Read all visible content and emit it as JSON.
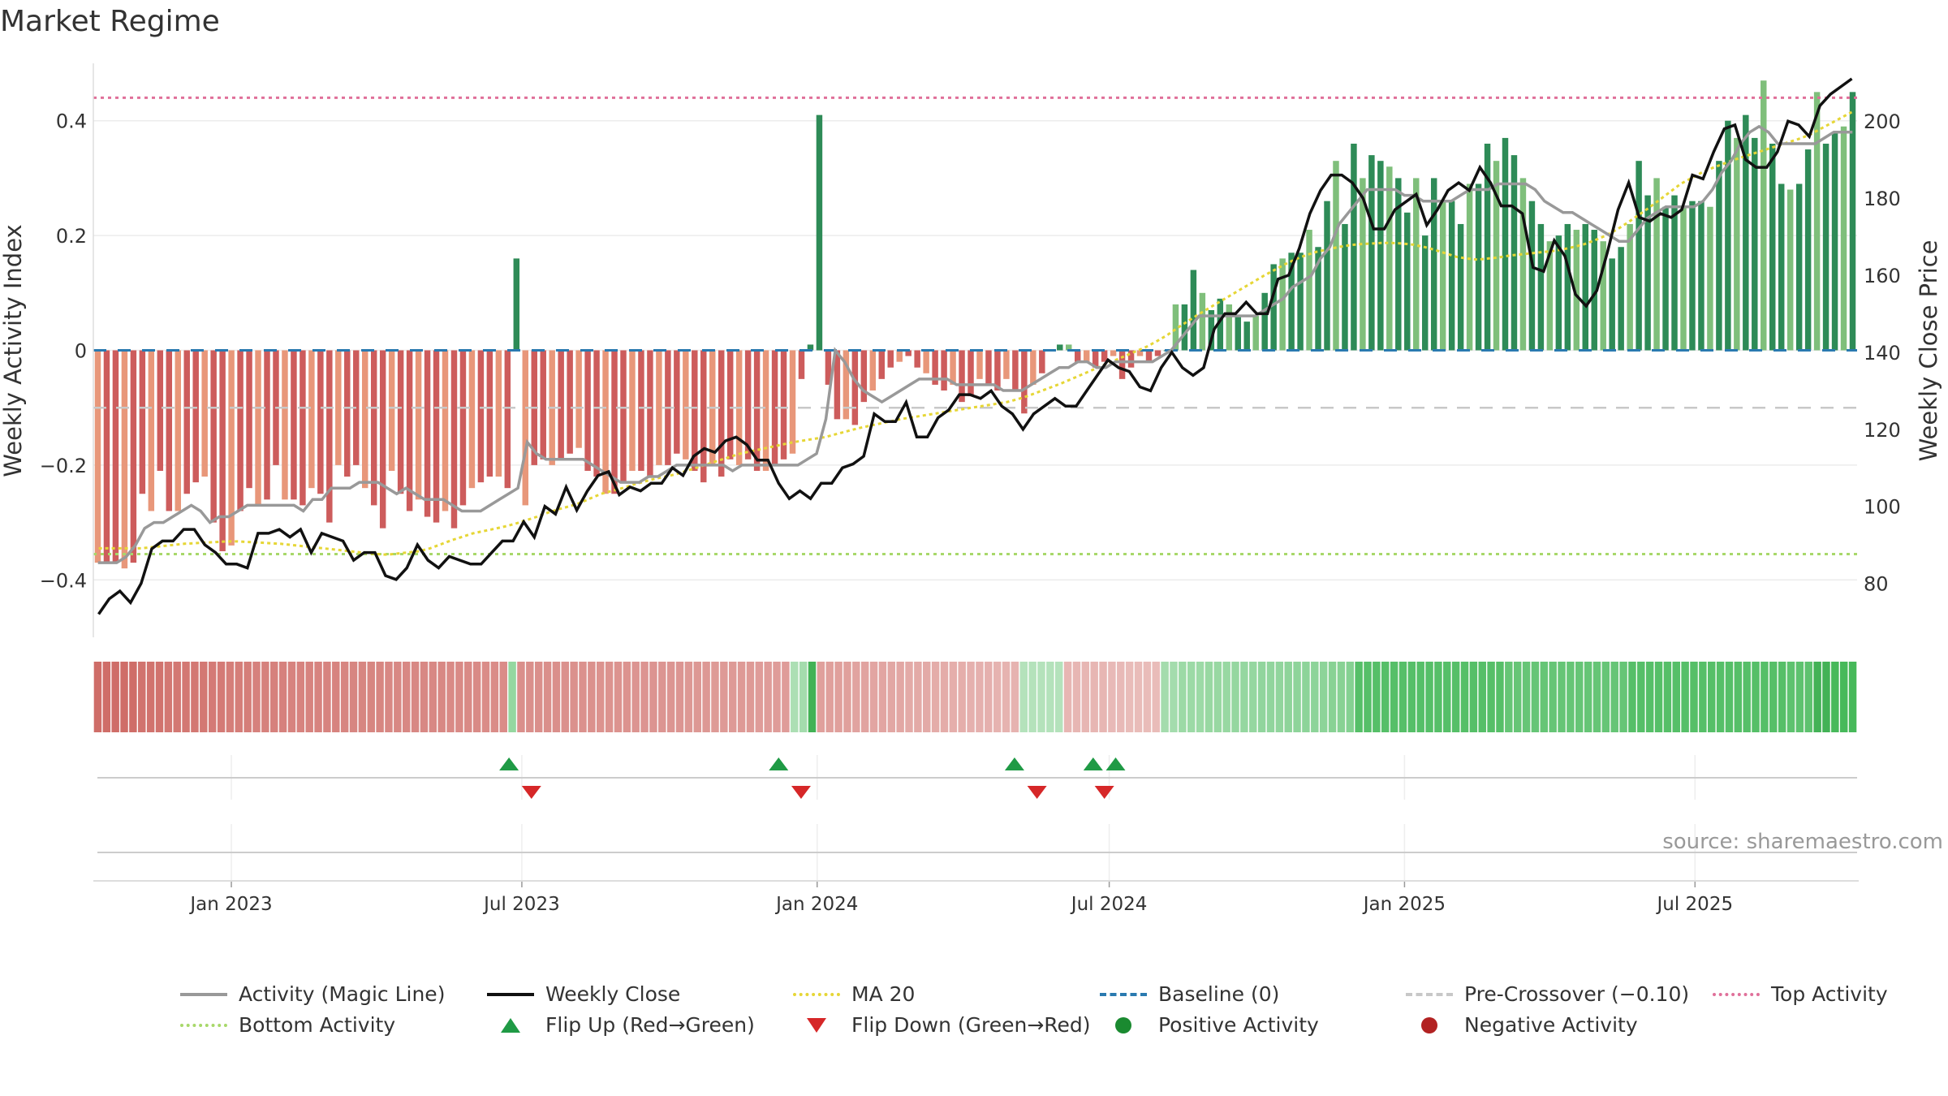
{
  "title": "Market Regime",
  "source": "source: sharemaestro.com",
  "colors": {
    "magic_line": "#999999",
    "weekly_close": "#111111",
    "ma20": "#e6d636",
    "baseline": "#2a7ab0",
    "pre_crossover": "#c8c8c8",
    "top_activity": "#e0709a",
    "bottom_activity": "#a8d86a",
    "flip_up": "#1f9a45",
    "flip_down": "#d62728",
    "positive": "#1a8a30",
    "negative": "#b22222"
  },
  "legend": [
    {
      "key": "magic",
      "label": "Activity (Magic Line)",
      "symbol": "line-solid",
      "color": "#999999"
    },
    {
      "key": "close",
      "label": "Weekly Close",
      "symbol": "line-solid",
      "color": "#111111"
    },
    {
      "key": "ma20",
      "label": "MA 20",
      "symbol": "line-dot",
      "color": "#e6d636"
    },
    {
      "key": "baseline",
      "label": "Baseline (0)",
      "symbol": "line-dash",
      "color": "#2a7ab0"
    },
    {
      "key": "precross",
      "label": "Pre-Crossover (−0.10)",
      "symbol": "line-dash",
      "color": "#c8c8c8"
    },
    {
      "key": "top",
      "label": "Top Activity",
      "symbol": "line-dot",
      "color": "#e0709a"
    },
    {
      "key": "bottom",
      "label": "Bottom Activity",
      "symbol": "line-dot",
      "color": "#a8d86a"
    },
    {
      "key": "flipup",
      "label": "Flip Up (Red→Green)",
      "symbol": "tri-up",
      "color": "#1f9a45"
    },
    {
      "key": "flipdown",
      "label": "Flip Down (Green→Red)",
      "symbol": "tri-down",
      "color": "#d62728"
    },
    {
      "key": "pos",
      "label": "Positive Activity",
      "symbol": "dot",
      "color": "#1a8a30"
    },
    {
      "key": "neg",
      "label": "Negative Activity",
      "symbol": "dot",
      "color": "#b22222"
    }
  ],
  "chart_data": {
    "type": "bar",
    "title": "Market Regime",
    "ylabel": "Weekly Activity Index",
    "y2label": "Weekly Close Price",
    "ylim": [
      -0.5,
      0.5
    ],
    "y2lim": [
      66,
      215
    ],
    "yticks": [
      -0.4,
      -0.2,
      0,
      0.2,
      0.4
    ],
    "ytick_labels": [
      "−0.4",
      "−0.2",
      "0",
      "0.2",
      "0.4"
    ],
    "y2ticks": [
      80,
      100,
      120,
      140,
      160,
      180,
      200
    ],
    "x_start": "2022-10-07",
    "x_end": "2025-10-10",
    "xticks": [
      "2023-01-01",
      "2023-07-01",
      "2024-01-01",
      "2024-07-01",
      "2025-01-01",
      "2025-07-01"
    ],
    "xtick_labels": [
      "Jan 2023",
      "Jul 2023",
      "Jan 2024",
      "Jul 2024",
      "Jan 2025",
      "Jul 2025"
    ],
    "reference_lines": {
      "baseline": 0,
      "pre_crossover": -0.1,
      "top_activity": 0.44,
      "bottom_activity": -0.355
    },
    "activity": [
      -0.37,
      -0.37,
      -0.37,
      -0.38,
      -0.37,
      -0.25,
      -0.28,
      -0.21,
      -0.28,
      -0.28,
      -0.25,
      -0.23,
      -0.22,
      -0.3,
      -0.35,
      -0.34,
      -0.28,
      -0.24,
      -0.27,
      -0.26,
      -0.2,
      -0.26,
      -0.26,
      -0.27,
      -0.24,
      -0.25,
      -0.3,
      -0.2,
      -0.22,
      -0.2,
      -0.24,
      -0.27,
      -0.31,
      -0.21,
      -0.25,
      -0.28,
      -0.26,
      -0.29,
      -0.3,
      -0.28,
      -0.31,
      -0.27,
      -0.24,
      -0.23,
      -0.22,
      -0.22,
      -0.24,
      0.16,
      -0.27,
      -0.2,
      -0.19,
      -0.2,
      -0.19,
      -0.18,
      -0.17,
      -0.21,
      -0.22,
      -0.25,
      -0.25,
      -0.23,
      -0.21,
      -0.21,
      -0.22,
      -0.2,
      -0.2,
      -0.18,
      -0.19,
      -0.21,
      -0.23,
      -0.2,
      -0.22,
      -0.19,
      -0.2,
      -0.19,
      -0.21,
      -0.21,
      -0.2,
      -0.19,
      -0.18,
      -0.05,
      0.01,
      0.41,
      -0.06,
      -0.12,
      -0.12,
      -0.13,
      -0.09,
      -0.07,
      -0.05,
      -0.03,
      -0.02,
      -0.01,
      -0.03,
      -0.04,
      -0.06,
      -0.07,
      -0.06,
      -0.09,
      -0.08,
      -0.05,
      -0.06,
      -0.07,
      -0.05,
      -0.07,
      -0.11,
      -0.06,
      -0.04,
      0.0,
      0.01,
      0.01,
      -0.02,
      -0.02,
      -0.03,
      -0.02,
      -0.01,
      -0.05,
      -0.03,
      -0.01,
      -0.02,
      -0.01,
      0.0,
      0.08,
      0.08,
      0.14,
      0.1,
      0.07,
      0.09,
      0.08,
      0.06,
      0.05,
      0.06,
      0.1,
      0.15,
      0.16,
      0.17,
      0.17,
      0.21,
      0.18,
      0.26,
      0.33,
      0.22,
      0.36,
      0.3,
      0.34,
      0.33,
      0.32,
      0.3,
      0.24,
      0.3,
      0.2,
      0.3,
      0.26,
      0.26,
      0.22,
      0.29,
      0.29,
      0.36,
      0.33,
      0.37,
      0.34,
      0.3,
      0.26,
      0.22,
      0.19,
      0.2,
      0.22,
      0.21,
      0.22,
      0.21,
      0.19,
      0.16,
      0.18,
      0.22,
      0.33,
      0.27,
      0.3,
      0.25,
      0.27,
      0.25,
      0.26,
      0.26,
      0.25,
      0.33,
      0.4,
      0.37,
      0.41,
      0.37,
      0.47,
      0.36,
      0.29,
      0.28,
      0.29,
      0.35,
      0.45,
      0.36,
      0.38,
      0.39,
      0.45
    ],
    "close": [
      72,
      76,
      78,
      75,
      80,
      89,
      91,
      91,
      94,
      94,
      90,
      88,
      85,
      85,
      84,
      93,
      93,
      94,
      92,
      94,
      88,
      93,
      92,
      91,
      86,
      88,
      88,
      82,
      81,
      84,
      90,
      86,
      84,
      87,
      86,
      85,
      85,
      88,
      91,
      91,
      96,
      92,
      100,
      98,
      105,
      99,
      104,
      108,
      109,
      103,
      105,
      104,
      106,
      106,
      110,
      108,
      113,
      115,
      114,
      117,
      118,
      116,
      112,
      112,
      106,
      102,
      104,
      102,
      106,
      106,
      110,
      111,
      113,
      124,
      122,
      122,
      127,
      118,
      118,
      123,
      125,
      129,
      129,
      128,
      130,
      126,
      124,
      120,
      124,
      126,
      128,
      126,
      126,
      130,
      134,
      138,
      136,
      135,
      131,
      130,
      136,
      140,
      136,
      134,
      136,
      146,
      150,
      150,
      153,
      150,
      150,
      159,
      160,
      167,
      176,
      182,
      186,
      186,
      184,
      180,
      172,
      172,
      177,
      179,
      181,
      173,
      177,
      182,
      184,
      182,
      188,
      184,
      178,
      178,
      176,
      162,
      161,
      169,
      165,
      155,
      152,
      156,
      166,
      177,
      184,
      175,
      174,
      176,
      175,
      177,
      186,
      185,
      192,
      198,
      199,
      190,
      188,
      188,
      192,
      200,
      199,
      196,
      204,
      207,
      209,
      211
    ],
    "magic": [
      -0.37,
      -0.37,
      -0.37,
      -0.36,
      -0.34,
      -0.31,
      -0.3,
      -0.3,
      -0.29,
      -0.28,
      -0.27,
      -0.28,
      -0.3,
      -0.29,
      -0.29,
      -0.28,
      -0.27,
      -0.27,
      -0.27,
      -0.27,
      -0.27,
      -0.27,
      -0.28,
      -0.26,
      -0.26,
      -0.24,
      -0.24,
      -0.24,
      -0.23,
      -0.23,
      -0.23,
      -0.24,
      -0.25,
      -0.24,
      -0.25,
      -0.26,
      -0.26,
      -0.26,
      -0.27,
      -0.28,
      -0.28,
      -0.28,
      -0.27,
      -0.26,
      -0.25,
      -0.24,
      -0.16,
      -0.18,
      -0.19,
      -0.19,
      -0.19,
      -0.19,
      -0.19,
      -0.2,
      -0.21,
      -0.22,
      -0.23,
      -0.23,
      -0.23,
      -0.22,
      -0.22,
      -0.21,
      -0.2,
      -0.2,
      -0.2,
      -0.2,
      -0.2,
      -0.2,
      -0.21,
      -0.2,
      -0.2,
      -0.2,
      -0.2,
      -0.2,
      -0.2,
      -0.2,
      -0.19,
      -0.18,
      -0.12,
      0.0,
      -0.02,
      -0.05,
      -0.07,
      -0.08,
      -0.09,
      -0.08,
      -0.07,
      -0.06,
      -0.05,
      -0.05,
      -0.05,
      -0.05,
      -0.06,
      -0.06,
      -0.06,
      -0.06,
      -0.06,
      -0.07,
      -0.07,
      -0.07,
      -0.06,
      -0.05,
      -0.04,
      -0.03,
      -0.03,
      -0.02,
      -0.02,
      -0.03,
      -0.03,
      -0.02,
      -0.02,
      -0.02,
      -0.02,
      -0.02,
      -0.01,
      0.0,
      0.02,
      0.04,
      0.06,
      0.06,
      0.06,
      0.06,
      0.06,
      0.06,
      0.06,
      0.07,
      0.08,
      0.09,
      0.11,
      0.12,
      0.13,
      0.16,
      0.18,
      0.22,
      0.24,
      0.26,
      0.28,
      0.28,
      0.28,
      0.28,
      0.27,
      0.27,
      0.26,
      0.26,
      0.26,
      0.26,
      0.27,
      0.28,
      0.28,
      0.28,
      0.29,
      0.29,
      0.29,
      0.29,
      0.28,
      0.26,
      0.25,
      0.24,
      0.24,
      0.23,
      0.22,
      0.21,
      0.2,
      0.19,
      0.19,
      0.21,
      0.23,
      0.24,
      0.25,
      0.25,
      0.25,
      0.25,
      0.26,
      0.28,
      0.31,
      0.33,
      0.36,
      0.38,
      0.39,
      0.38,
      0.36,
      0.36,
      0.36,
      0.36,
      0.36,
      0.37,
      0.38,
      0.38,
      0.38
    ],
    "ma20": [
      -0.345,
      -0.345,
      -0.345,
      -0.345,
      -0.345,
      -0.343,
      -0.341,
      -0.339,
      -0.337,
      -0.336,
      -0.335,
      -0.334,
      -0.333,
      -0.333,
      -0.334,
      -0.335,
      -0.336,
      -0.337,
      -0.339,
      -0.341,
      -0.343,
      -0.345,
      -0.347,
      -0.349,
      -0.351,
      -0.353,
      -0.355,
      -0.356,
      -0.354,
      -0.352,
      -0.35,
      -0.345,
      -0.338,
      -0.331,
      -0.325,
      -0.319,
      -0.315,
      -0.311,
      -0.307,
      -0.302,
      -0.296,
      -0.29,
      -0.283,
      -0.277,
      -0.272,
      -0.266,
      -0.258,
      -0.25,
      -0.245,
      -0.24,
      -0.234,
      -0.229,
      -0.224,
      -0.22,
      -0.216,
      -0.21,
      -0.204,
      -0.198,
      -0.192,
      -0.186,
      -0.18,
      -0.176,
      -0.172,
      -0.168,
      -0.164,
      -0.16,
      -0.157,
      -0.154,
      -0.151,
      -0.146,
      -0.141,
      -0.136,
      -0.132,
      -0.128,
      -0.124,
      -0.12,
      -0.117,
      -0.114,
      -0.111,
      -0.108,
      -0.105,
      -0.102,
      -0.099,
      -0.096,
      -0.093,
      -0.09,
      -0.085,
      -0.079,
      -0.072,
      -0.065,
      -0.058,
      -0.05,
      -0.042,
      -0.034,
      -0.026,
      -0.018,
      -0.01,
      -0.002,
      0.006,
      0.016,
      0.027,
      0.04,
      0.052,
      0.064,
      0.075,
      0.086,
      0.097,
      0.108,
      0.119,
      0.13,
      0.14,
      0.15,
      0.159,
      0.166,
      0.172,
      0.176,
      0.18,
      0.183,
      0.185,
      0.186,
      0.187,
      0.187,
      0.186,
      0.184,
      0.18,
      0.175,
      0.169,
      0.163,
      0.16,
      0.158,
      0.16,
      0.162,
      0.165,
      0.167,
      0.169,
      0.171,
      0.173,
      0.176,
      0.18,
      0.185,
      0.192,
      0.2,
      0.21,
      0.222,
      0.235,
      0.248,
      0.262,
      0.276,
      0.29,
      0.3,
      0.31,
      0.318,
      0.325,
      0.332,
      0.338,
      0.344,
      0.35,
      0.356,
      0.362,
      0.368,
      0.375,
      0.385,
      0.395,
      0.405,
      0.415
    ],
    "heat": [
      -0.9,
      -0.9,
      -0.9,
      -0.9,
      -0.9,
      -0.85,
      -0.85,
      -0.85,
      -0.8,
      -0.8,
      -0.8,
      -0.8,
      -0.8,
      -0.78,
      -0.78,
      -0.75,
      -0.75,
      -0.75,
      -0.72,
      -0.72,
      -0.72,
      -0.72,
      -0.7,
      -0.7,
      -0.7,
      -0.7,
      -0.7,
      -0.7,
      -0.68,
      -0.68,
      -0.68,
      -0.68,
      -0.68,
      -0.66,
      -0.66,
      -0.66,
      -0.66,
      -0.66,
      -0.66,
      -0.66,
      -0.64,
      -0.64,
      -0.64,
      -0.64,
      -0.62,
      -0.62,
      -0.62,
      0.4,
      -0.6,
      -0.6,
      -0.6,
      -0.6,
      -0.6,
      -0.58,
      -0.58,
      -0.58,
      -0.58,
      -0.56,
      -0.56,
      -0.56,
      -0.56,
      -0.55,
      -0.55,
      -0.55,
      -0.54,
      -0.54,
      -0.54,
      -0.52,
      -0.52,
      -0.52,
      -0.5,
      -0.5,
      -0.5,
      -0.5,
      -0.5,
      -0.48,
      -0.48,
      -0.48,
      -0.48,
      0.25,
      0.3,
      0.95,
      -0.45,
      -0.45,
      -0.45,
      -0.45,
      -0.42,
      -0.42,
      -0.4,
      -0.4,
      -0.38,
      -0.38,
      -0.36,
      -0.36,
      -0.36,
      -0.34,
      -0.34,
      -0.32,
      -0.32,
      -0.3,
      -0.3,
      -0.3,
      -0.28,
      -0.28,
      -0.28,
      0.2,
      0.2,
      0.2,
      0.2,
      0.2,
      -0.25,
      -0.25,
      -0.25,
      -0.25,
      -0.25,
      -0.22,
      -0.22,
      -0.2,
      -0.2,
      -0.2,
      -0.2,
      0.3,
      0.3,
      0.35,
      0.35,
      0.35,
      0.38,
      0.38,
      0.38,
      0.4,
      0.4,
      0.4,
      0.42,
      0.42,
      0.42,
      0.44,
      0.44,
      0.45,
      0.45,
      0.45,
      0.48,
      0.48,
      0.5,
      0.8,
      0.8,
      0.8,
      0.8,
      0.8,
      0.8,
      0.8,
      0.8,
      0.8,
      0.8,
      0.8,
      0.8,
      0.8,
      0.8,
      0.8,
      0.8,
      0.8,
      0.7,
      0.7,
      0.7,
      0.7,
      0.7,
      0.7,
      0.7,
      0.7,
      0.7,
      0.7,
      0.7,
      0.7,
      0.7,
      0.7,
      0.8,
      0.8,
      0.8,
      0.8,
      0.8,
      0.8,
      0.8,
      0.8,
      0.8,
      0.8,
      0.8,
      0.8,
      0.8,
      0.8,
      0.8,
      0.8,
      0.8,
      0.8,
      0.75,
      0.75,
      0.75,
      0.95,
      0.95,
      0.9,
      0.9,
      0.9
    ],
    "flips": [
      {
        "type": "up",
        "date": "2023-06-23"
      },
      {
        "type": "down",
        "date": "2023-07-07"
      },
      {
        "type": "up",
        "date": "2023-12-08"
      },
      {
        "type": "down",
        "date": "2023-12-22"
      },
      {
        "type": "up",
        "date": "2024-05-03"
      },
      {
        "type": "down",
        "date": "2024-05-17"
      },
      {
        "type": "up",
        "date": "2024-06-21"
      },
      {
        "type": "up",
        "date": "2024-07-05"
      },
      {
        "type": "down",
        "date": "2024-06-28"
      }
    ]
  }
}
